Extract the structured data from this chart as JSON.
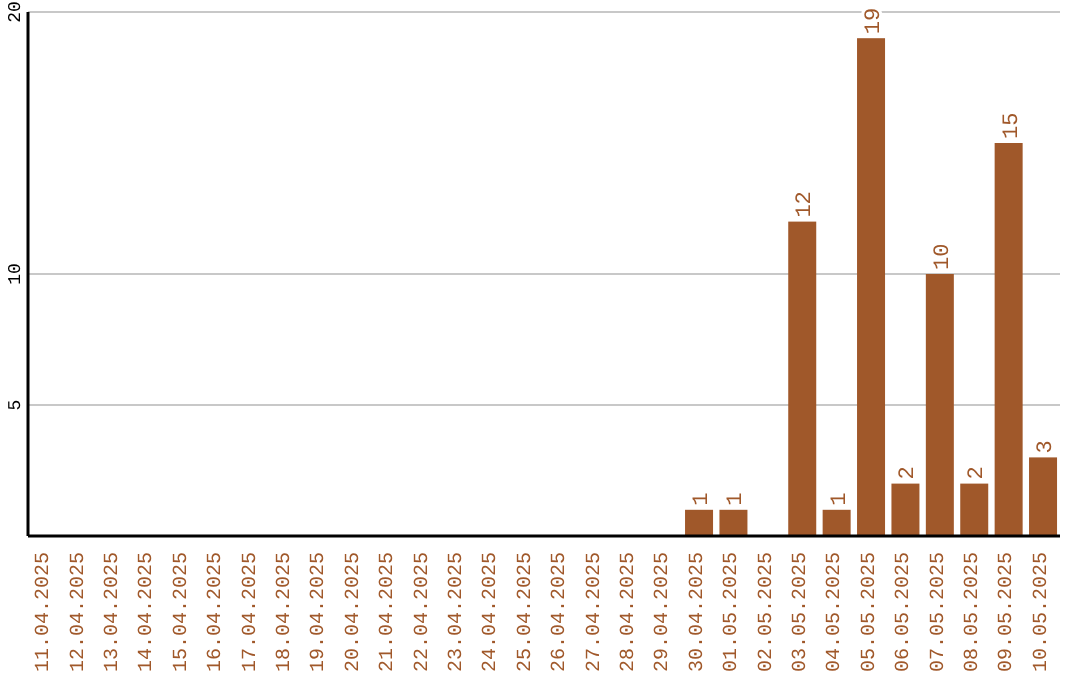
{
  "chart_data": {
    "type": "bar",
    "categories": [
      "11.04.2025",
      "12.04.2025",
      "13.04.2025",
      "14.04.2025",
      "15.04.2025",
      "16.04.2025",
      "17.04.2025",
      "18.04.2025",
      "19.04.2025",
      "20.04.2025",
      "21.04.2025",
      "22.04.2025",
      "23.04.2025",
      "24.04.2025",
      "25.04.2025",
      "26.04.2025",
      "27.04.2025",
      "28.04.2025",
      "29.04.2025",
      "30.04.2025",
      "01.05.2025",
      "02.05.2025",
      "03.05.2025",
      "04.05.2025",
      "05.05.2025",
      "06.05.2025",
      "07.05.2025",
      "08.05.2025",
      "09.05.2025",
      "10.05.2025"
    ],
    "values": [
      0,
      0,
      0,
      0,
      0,
      0,
      0,
      0,
      0,
      0,
      0,
      0,
      0,
      0,
      0,
      0,
      0,
      0,
      0,
      1,
      1,
      0,
      12,
      1,
      19,
      2,
      10,
      2,
      15,
      3
    ],
    "value_labels": [
      null,
      null,
      null,
      null,
      null,
      null,
      null,
      null,
      null,
      null,
      null,
      null,
      null,
      null,
      null,
      null,
      null,
      null,
      null,
      "1",
      "1",
      null,
      "12",
      "1",
      "19",
      "2",
      "10",
      "2",
      "15",
      "3"
    ],
    "color": "#a0582a",
    "ylim": [
      0,
      20
    ],
    "yticks": [
      5,
      10,
      20
    ],
    "grid": "y"
  }
}
